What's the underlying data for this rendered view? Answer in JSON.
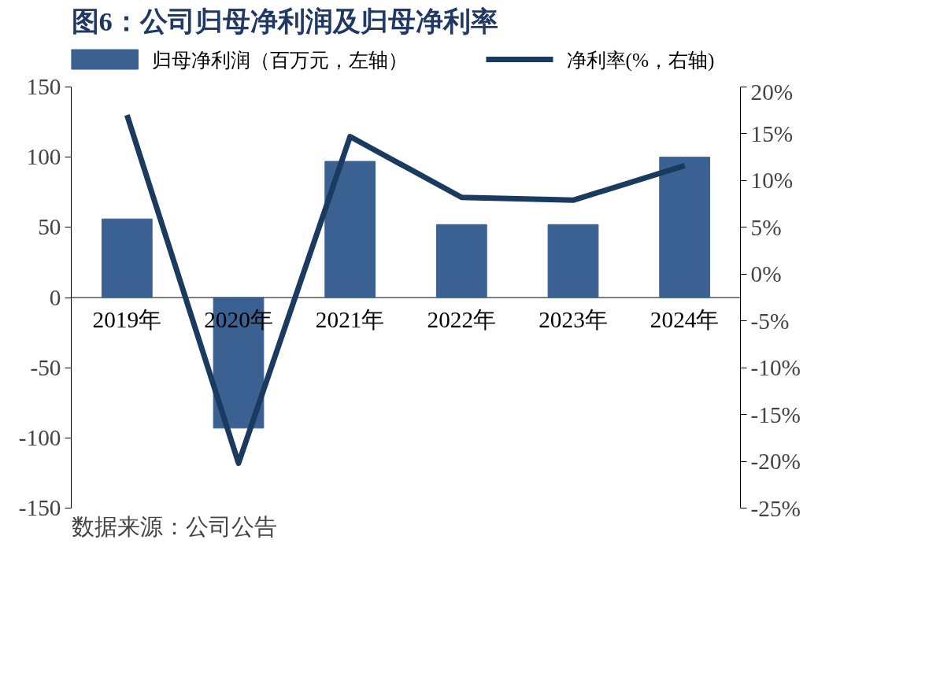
{
  "chart_data": {
    "type": "bar",
    "title": "图6：公司归母净利润及归母净利率",
    "categories": [
      "2019年",
      "2020年",
      "2021年",
      "2022年",
      "2023年",
      "2024年"
    ],
    "series": [
      {
        "name": "归母净利润（百万元，左轴）",
        "color": "#3a6191",
        "values": [
          56,
          -93,
          97,
          52,
          52,
          100
        ]
      },
      {
        "name": "净利率(%，右轴)",
        "type": "line",
        "axis": "y2",
        "color": "#1b3a5f",
        "values": [
          17.0,
          -20.2,
          14.7,
          8.2,
          7.9,
          11.6
        ]
      }
    ],
    "ylim": [
      -150,
      150
    ],
    "yticks": [
      -150,
      -100,
      -50,
      0,
      50,
      100,
      150
    ],
    "y2lim": [
      -25,
      20
    ],
    "y2ticks": [
      {
        "value": -25,
        "label": "-25%"
      },
      {
        "value": -20,
        "label": "-20%"
      },
      {
        "value": -15,
        "label": "-15%"
      },
      {
        "value": -10,
        "label": "-10%"
      },
      {
        "value": -5,
        "label": "-5%"
      },
      {
        "value": 0,
        "label": "0%"
      },
      {
        "value": 5,
        "label": "5%"
      },
      {
        "value": 10,
        "label": "10%"
      },
      {
        "value": 15,
        "label": "15%"
      },
      {
        "value": 20,
        "label": "20%"
      }
    ],
    "legend": "top",
    "grid": false,
    "tick_labels": "y",
    "annotations": [
      "数据来源：公司公告"
    ]
  }
}
